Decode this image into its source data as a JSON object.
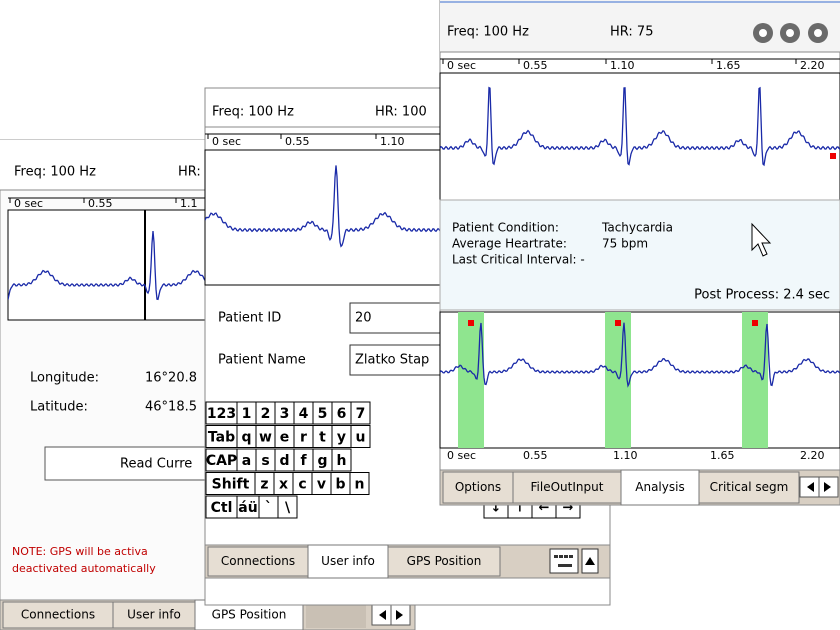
{
  "gps_window": {
    "freq": "Freq: 100 Hz",
    "hr": "HR:",
    "axis": [
      "0 sec",
      "0.55",
      "1.1"
    ],
    "fields": [
      {
        "label": "Longitude:",
        "value": "16°20.8"
      },
      {
        "label": "Latitude:",
        "value": "46°18.5"
      }
    ],
    "button": "Read Curre",
    "note": [
      "NOTE: GPS will be activa",
      "deactivated automatically"
    ],
    "tabs": [
      "Connections",
      "User info",
      "GPS Position"
    ]
  },
  "user_window": {
    "freq": "Freq: 100 Hz",
    "hr": "HR: 100",
    "axis": [
      "0 sec",
      "0.55",
      "1.10"
    ],
    "fields": [
      {
        "label": "Patient ID",
        "value": "20"
      },
      {
        "label": "Patient Name",
        "value": "Zlatko Stap"
      }
    ],
    "keyboard": [
      [
        "123",
        "1",
        "2",
        "3",
        "4",
        "5",
        "6",
        "7"
      ],
      [
        "Tab",
        "q",
        "w",
        "e",
        "r",
        "t",
        "y",
        "u"
      ],
      [
        "CAP",
        "a",
        "s",
        "d",
        "f",
        "g",
        "h"
      ],
      [
        "Shift",
        "z",
        "x",
        "c",
        "v",
        "b",
        "n"
      ],
      [
        "Ctl",
        "áü",
        "`",
        "\\"
      ]
    ],
    "arrows": [
      "↓",
      "↑",
      "←",
      "→"
    ],
    "tabs": [
      "Connections",
      "User info",
      "GPS Position"
    ]
  },
  "analysis_window": {
    "freq": "Freq: 100 Hz",
    "hr": "HR: 75",
    "axis": [
      "0 sec",
      "0.55",
      "1.10",
      "1.65",
      "2.20"
    ],
    "info": [
      {
        "label": "Patient Condition:",
        "value": "Tachycardia"
      },
      {
        "label": "Average Heartrate:",
        "value": "75 bpm"
      }
    ],
    "last_interval": "Last Critical Interval: -",
    "post_process": "Post Process: 2.4 sec",
    "zoom_axis": [
      "0 sec",
      "0.55",
      "1.10",
      "1.65",
      "2.20"
    ],
    "tabs": [
      "Options",
      "FileOutInput",
      "Analysis",
      "Critical segm"
    ]
  }
}
